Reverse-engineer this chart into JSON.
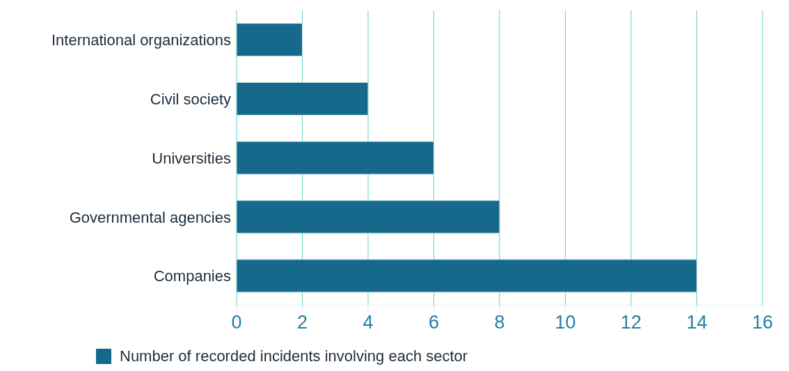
{
  "chart_data": {
    "type": "bar",
    "orientation": "horizontal",
    "categories": [
      "International organizations",
      "Civil society",
      "Universities",
      "Governmental agencies",
      "Companies"
    ],
    "series": [
      {
        "name": "Number of recorded incidents involving each sector",
        "color": "#17698c",
        "values": [
          2,
          4,
          6,
          8,
          14
        ]
      }
    ],
    "xlim": [
      0,
      16
    ],
    "xticks": [
      0,
      2,
      4,
      6,
      8,
      10,
      12,
      14,
      16
    ],
    "grid": "x",
    "legend": "bottom"
  }
}
